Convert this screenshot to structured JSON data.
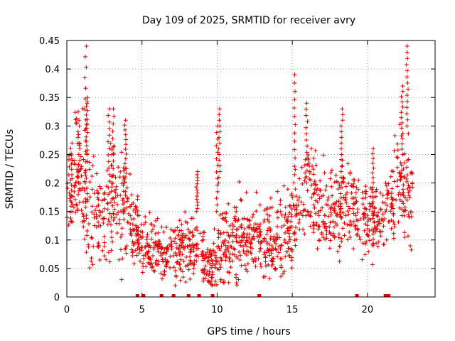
{
  "chart_data": {
    "type": "scatter",
    "title": "Day 109 of 2025, SRMTID for receiver avry",
    "xlabel": "GPS time / hours",
    "ylabel": "SRMTID / TECUs",
    "xlim": [
      0,
      24.5
    ],
    "ylim": [
      0,
      0.45
    ],
    "xticks": [
      "0",
      "5",
      "10",
      "15",
      "20"
    ],
    "xtick_values": [
      0,
      5,
      10,
      15,
      20
    ],
    "yticks": [
      "0",
      "0.05",
      "0.1",
      "0.15",
      "0.2",
      "0.25",
      "0.3",
      "0.35",
      "0.4",
      "0.45"
    ],
    "ytick_values": [
      0,
      0.05,
      0.1,
      0.15,
      0.2,
      0.25,
      0.3,
      0.35,
      0.4,
      0.45
    ],
    "grid": true,
    "marker": "+",
    "color": "#e00000",
    "envelope": {
      "hours": [
        0,
        0.5,
        1,
        1.5,
        2,
        2.5,
        3,
        3.5,
        4,
        4.5,
        5,
        5.5,
        6,
        6.5,
        7,
        7.5,
        8,
        8.5,
        9,
        9.5,
        10,
        10.5,
        11,
        11.5,
        12,
        12.5,
        13,
        13.5,
        14,
        14.5,
        15,
        15.5,
        16,
        16.5,
        17,
        17.5,
        18,
        18.5,
        19,
        19.5,
        20,
        20.5,
        21,
        21.5,
        22,
        22.5,
        23
      ],
      "center": [
        0.18,
        0.2,
        0.21,
        0.17,
        0.15,
        0.14,
        0.18,
        0.16,
        0.15,
        0.12,
        0.1,
        0.09,
        0.085,
        0.075,
        0.075,
        0.08,
        0.08,
        0.08,
        0.07,
        0.05,
        0.08,
        0.095,
        0.1,
        0.1,
        0.1,
        0.11,
        0.1,
        0.1,
        0.09,
        0.11,
        0.13,
        0.17,
        0.19,
        0.17,
        0.14,
        0.13,
        0.16,
        0.18,
        0.15,
        0.13,
        0.13,
        0.14,
        0.13,
        0.16,
        0.2,
        0.19,
        0.18
      ],
      "spread": [
        0.05,
        0.06,
        0.08,
        0.06,
        0.05,
        0.05,
        0.07,
        0.06,
        0.05,
        0.04,
        0.035,
        0.03,
        0.03,
        0.03,
        0.03,
        0.035,
        0.035,
        0.035,
        0.035,
        0.025,
        0.04,
        0.045,
        0.045,
        0.045,
        0.04,
        0.04,
        0.04,
        0.04,
        0.04,
        0.04,
        0.045,
        0.05,
        0.05,
        0.05,
        0.045,
        0.045,
        0.05,
        0.05,
        0.05,
        0.05,
        0.04,
        0.04,
        0.04,
        0.05,
        0.06,
        0.06,
        0.05
      ]
    },
    "spikes": [
      {
        "x": 0.3,
        "y0": 0.15,
        "y1": 0.27
      },
      {
        "x": 0.8,
        "y0": 0.18,
        "y1": 0.31
      },
      {
        "x": 1.25,
        "y0": 0.2,
        "y1": 0.44
      },
      {
        "x": 1.35,
        "y0": 0.25,
        "y1": 0.35
      },
      {
        "x": 2.8,
        "y0": 0.18,
        "y1": 0.33
      },
      {
        "x": 3.1,
        "y0": 0.16,
        "y1": 0.33
      },
      {
        "x": 3.9,
        "y0": 0.2,
        "y1": 0.31
      },
      {
        "x": 8.65,
        "y0": 0.15,
        "y1": 0.22
      },
      {
        "x": 10.15,
        "y0": 0.2,
        "y1": 0.33
      },
      {
        "x": 10.0,
        "y0": 0.15,
        "y1": 0.3
      },
      {
        "x": 15.15,
        "y0": 0.2,
        "y1": 0.39
      },
      {
        "x": 15.95,
        "y0": 0.2,
        "y1": 0.34
      },
      {
        "x": 18.3,
        "y0": 0.2,
        "y1": 0.33
      },
      {
        "x": 20.35,
        "y0": 0.15,
        "y1": 0.26
      },
      {
        "x": 22.3,
        "y0": 0.25,
        "y1": 0.37
      },
      {
        "x": 22.65,
        "y0": 0.3,
        "y1": 0.44
      }
    ],
    "baseline_markers": [
      4.7,
      5.1,
      6.3,
      7.1,
      8.1,
      8.8,
      9.7,
      12.8,
      19.3,
      21.2,
      21.4
    ]
  }
}
